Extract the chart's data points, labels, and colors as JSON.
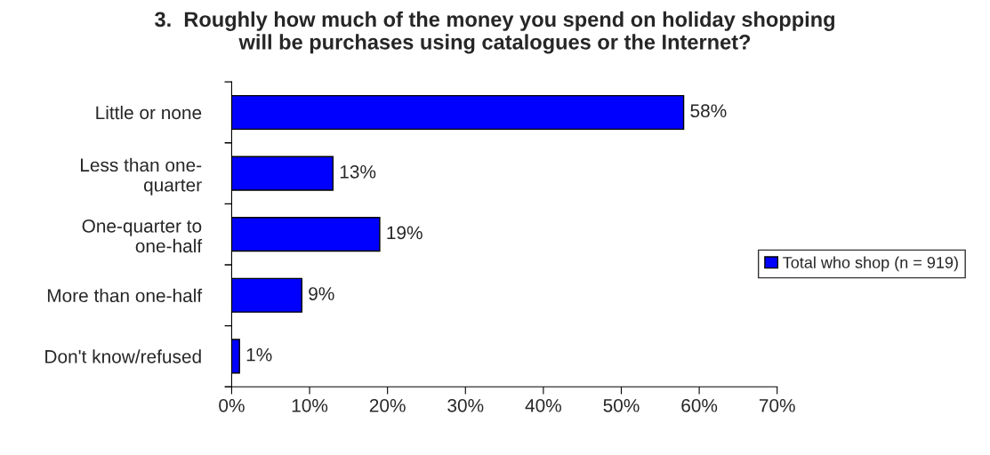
{
  "chart_data": {
    "type": "bar",
    "orientation": "horizontal",
    "title": "3.  Roughly how much of the money you spend on holiday shopping\nwill be purchases using catalogues or the Internet?",
    "categories": [
      "Little or none",
      "Less than one-\nquarter",
      "One-quarter to\none-half",
      "More than one-half",
      "Don't know/refused"
    ],
    "series": [
      {
        "name": "Total who shop (n = 919)",
        "color": "#0000ff",
        "values": [
          58,
          13,
          19,
          9,
          1
        ],
        "value_labels": [
          "58%",
          "13%",
          "19%",
          "9%",
          "1%"
        ]
      }
    ],
    "xlim": [
      0,
      70
    ],
    "xticks": [
      {
        "value": 0,
        "label": "0%"
      },
      {
        "value": 10,
        "label": "10%"
      },
      {
        "value": 20,
        "label": "20%"
      },
      {
        "value": 30,
        "label": "30%"
      },
      {
        "value": 40,
        "label": "40%"
      },
      {
        "value": 50,
        "label": "50%"
      },
      {
        "value": 60,
        "label": "60%"
      },
      {
        "value": 70,
        "label": "70%"
      }
    ],
    "grid": false,
    "legend": "right"
  }
}
